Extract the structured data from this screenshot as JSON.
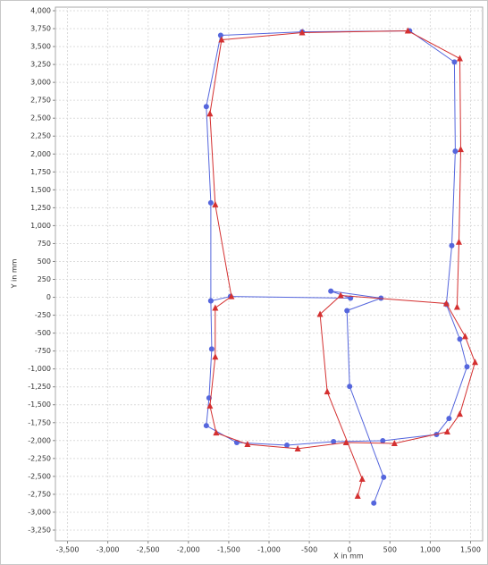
{
  "chart_data": {
    "type": "line",
    "xlabel": "X in mm",
    "ylabel": "Y in mm",
    "xlim": [
      -3650,
      1650
    ],
    "ylim": [
      -3400,
      4050
    ],
    "xticks": [
      {
        "value": -3500,
        "label": "-3,500"
      },
      {
        "value": -3000,
        "label": "-3,000"
      },
      {
        "value": -2500,
        "label": "-2,500"
      },
      {
        "value": -2000,
        "label": "-2,000"
      },
      {
        "value": -1500,
        "label": "-1,500"
      },
      {
        "value": -1000,
        "label": "-1,000"
      },
      -500,
      0,
      500,
      {
        "value": 1000,
        "label": "1,000"
      },
      {
        "value": 1500,
        "label": "1,500"
      }
    ],
    "yticks": [
      {
        "value": 4000,
        "label": "4,000"
      },
      {
        "value": 3750,
        "label": "3,750"
      },
      {
        "value": 3500,
        "label": "3,500"
      },
      {
        "value": 3250,
        "label": "3,250"
      },
      {
        "value": 3000,
        "label": "3,000"
      },
      {
        "value": 2750,
        "label": "2,750"
      },
      {
        "value": 2500,
        "label": "2,500"
      },
      {
        "value": 2250,
        "label": "2,250"
      },
      {
        "value": 2000,
        "label": "2,000"
      },
      {
        "value": 1750,
        "label": "1,750"
      },
      {
        "value": 1500,
        "label": "1,500"
      },
      {
        "value": 1250,
        "label": "1,250"
      },
      {
        "value": 1000,
        "label": "1,000"
      },
      750,
      500,
      250,
      0,
      -250,
      -500,
      -750,
      {
        "value": -1000,
        "label": "-1,000"
      },
      {
        "value": -1250,
        "label": "-1,250"
      },
      {
        "value": -1500,
        "label": "-1,500"
      },
      {
        "value": -1750,
        "label": "-1,750"
      },
      {
        "value": -2000,
        "label": "-2,000"
      },
      {
        "value": -2250,
        "label": "-2,250"
      },
      {
        "value": -2500,
        "label": "-2,500"
      },
      {
        "value": -2750,
        "label": "-2,750"
      },
      {
        "value": -3000,
        "label": "-3,000"
      },
      {
        "value": -3250,
        "label": "-3,250"
      }
    ],
    "grid": true,
    "series": [
      {
        "color": "#5566dd",
        "marker": "circle",
        "x": [
          300,
          422,
          0,
          -33,
          389,
          -233,
          11,
          -1478,
          -1722,
          -1711,
          -1744,
          -1778,
          -1400,
          -778,
          -200,
          411,
          1078,
          1233,
          1456,
          1367,
          1200,
          1267,
          1311,
          1300,
          744,
          -589,
          -1600,
          -1778,
          -1722,
          -1722
        ],
        "values": [
          -2873,
          -2512,
          -1244,
          -187,
          -12,
          87,
          -12,
          12,
          -50,
          -721,
          -1405,
          -1791,
          -2027,
          -2065,
          -2015,
          -2002,
          -1915,
          -1692,
          -970,
          -585,
          -100,
          721,
          2040,
          3284,
          3719,
          3706,
          3657,
          2662,
          1318,
          -50
        ]
      },
      {
        "color": "#d43030",
        "marker": "triangle",
        "x": [
          100,
          156,
          -278,
          -367,
          -111,
          1200,
          1433,
          1556,
          1367,
          1211,
          556,
          -44,
          -644,
          -1267,
          -1656,
          -1733,
          -1667,
          -1667,
          -1467,
          -1667,
          -1733,
          -1589,
          -589,
          722,
          1367,
          1378,
          1356,
          1333
        ],
        "values": [
          -2774,
          -2537,
          -1318,
          -236,
          25,
          -87,
          -547,
          -908,
          -1629,
          -1878,
          -2040,
          -2027,
          -2114,
          -2052,
          -1891,
          -1517,
          -833,
          -149,
          12,
          1294,
          2562,
          3595,
          3694,
          3719,
          3333,
          2065,
          771,
          -137
        ]
      }
    ]
  }
}
